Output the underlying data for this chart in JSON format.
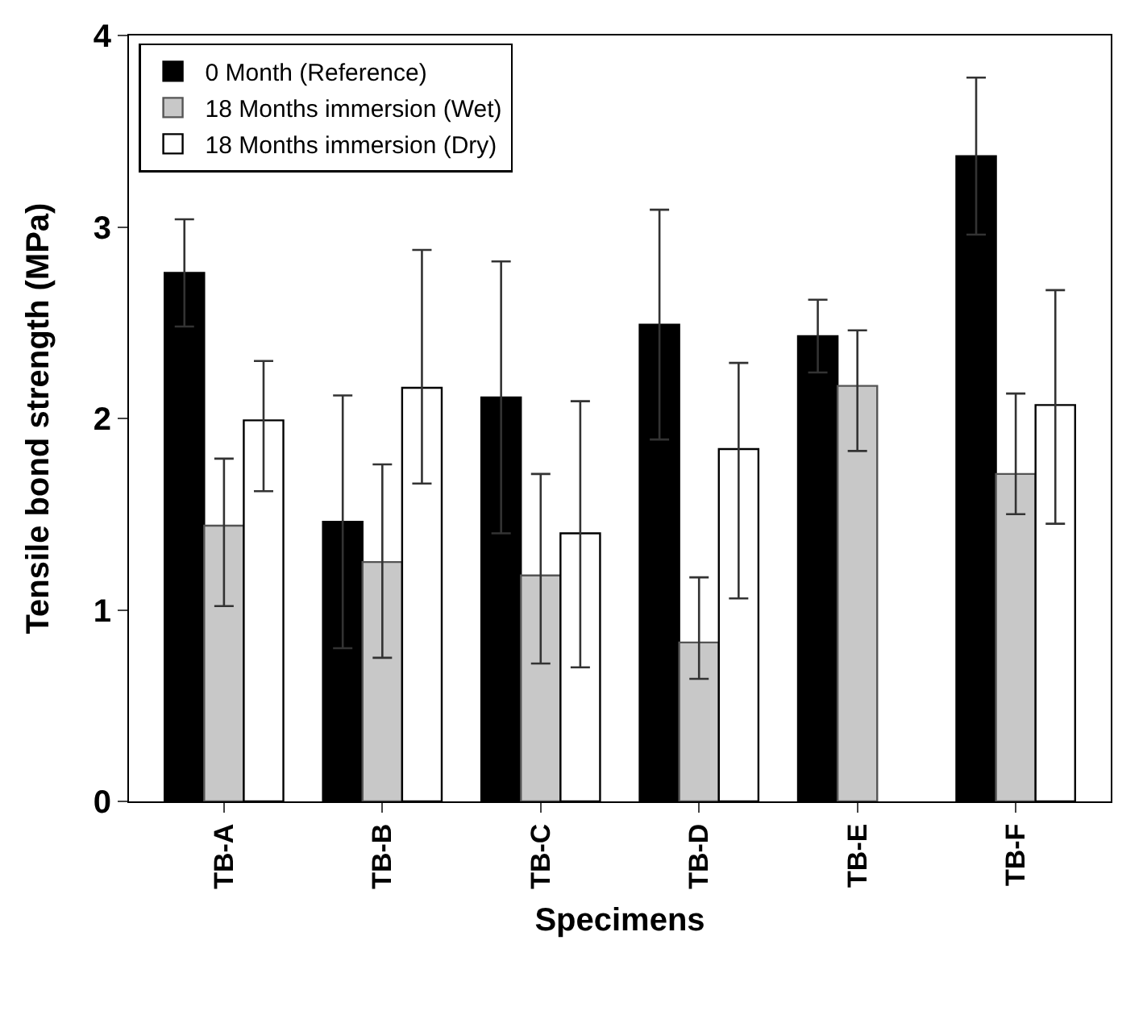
{
  "chart_data": {
    "type": "bar",
    "xlabel": "Specimens",
    "ylabel": "Tensile bond strength (MPa)",
    "categories": [
      "TB-A",
      "TB-B",
      "TB-C",
      "TB-D",
      "TB-E",
      "TB-F"
    ],
    "series": [
      {
        "name": "0 Month (Reference)",
        "color": "#000000",
        "values": [
          2.76,
          1.46,
          2.11,
          2.49,
          2.43,
          3.37
        ],
        "errors": [
          0.28,
          0.66,
          0.71,
          0.6,
          0.19,
          0.41
        ]
      },
      {
        "name": "18 Months immersion (Wet)",
        "color": "#c8c8c8",
        "values": [
          1.44,
          1.25,
          1.18,
          0.83,
          2.17,
          1.71
        ],
        "errors": [
          [
            1.02,
            1.79
          ],
          [
            0.75,
            1.76
          ],
          [
            0.72,
            1.71
          ],
          [
            0.64,
            1.17
          ],
          [
            1.83,
            2.46
          ],
          [
            1.5,
            2.13
          ]
        ]
      },
      {
        "name": "18 Months immersion (Dry)",
        "color": "#ffffff",
        "values": [
          1.99,
          2.16,
          1.4,
          1.84,
          null,
          2.07
        ],
        "errors": [
          [
            1.62,
            2.3
          ],
          [
            1.66,
            2.88
          ],
          [
            0.7,
            2.09
          ],
          [
            1.06,
            2.29
          ],
          null,
          [
            1.45,
            2.67
          ]
        ]
      }
    ],
    "ylim": [
      0,
      4
    ],
    "yticks": [
      0,
      1,
      2,
      3,
      4
    ],
    "grid": false,
    "legend": "top left"
  }
}
